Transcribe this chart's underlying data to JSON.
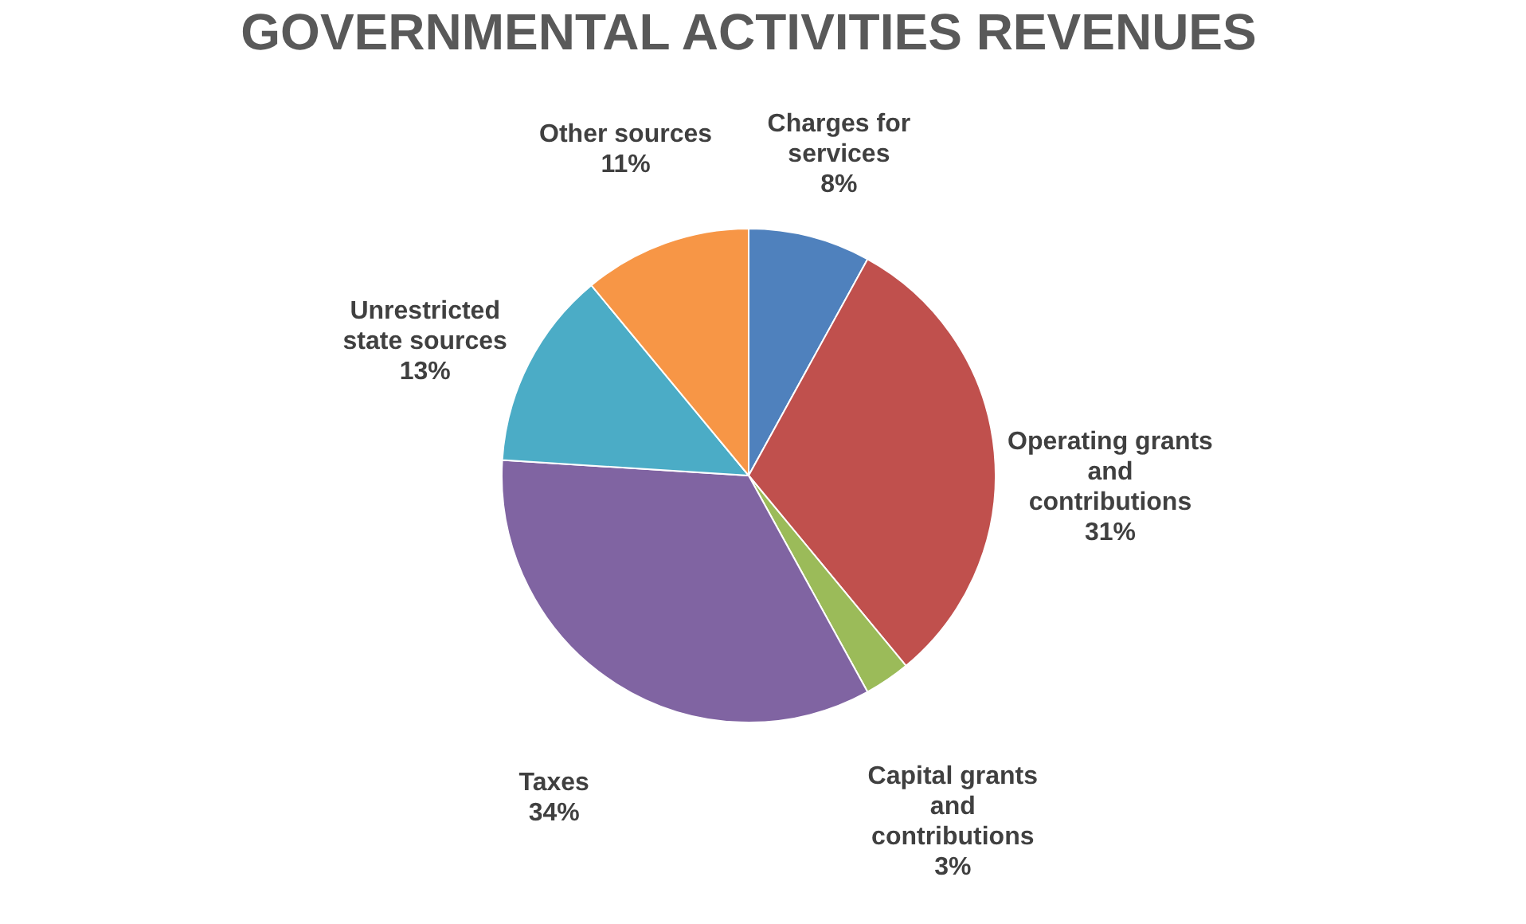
{
  "chart_data": {
    "type": "pie",
    "title": "GOVERNMENTAL ACTIVITIES REVENUES",
    "categories": [
      "Charges for services",
      "Operating grants and contributions",
      "Capital grants and contributions",
      "Taxes",
      "Unrestricted state sources",
      "Other sources"
    ],
    "values": [
      8,
      31,
      3,
      34,
      13,
      11
    ],
    "colors": [
      "#4f81bd",
      "#c0504d",
      "#9bbb59",
      "#8064a2",
      "#4bacc6",
      "#f79646"
    ],
    "value_labels": [
      "8%",
      "31%",
      "3%",
      "34%",
      "13%",
      "11%"
    ],
    "legend": false
  }
}
